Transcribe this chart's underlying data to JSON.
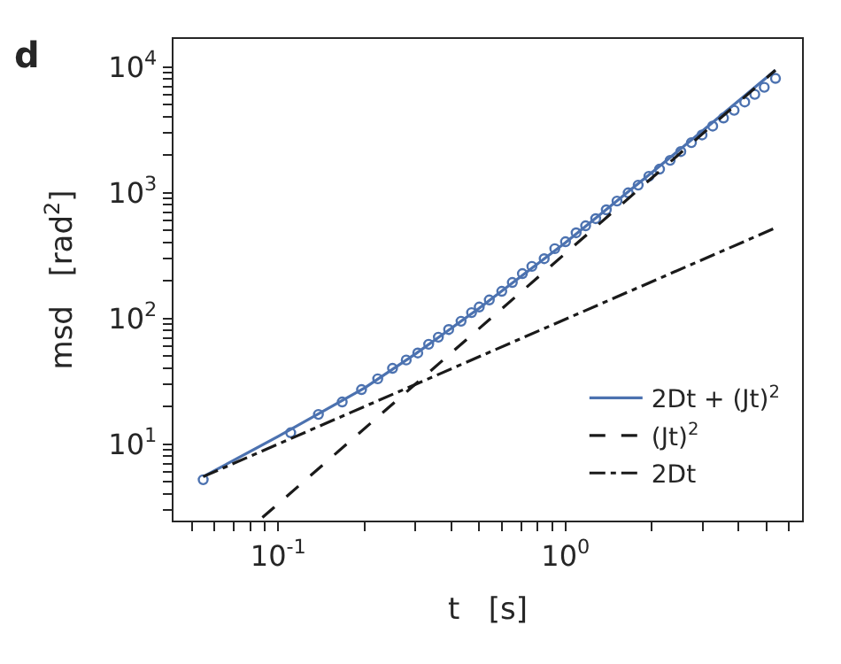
{
  "chart_data": {
    "type": "line",
    "xlabel": "t   [s]",
    "ylabel": "msd   [rad$^{2}$]",
    "log": "xy",
    "legend": "bottom right",
    "annotations": [
      "d"
    ],
    "xlim": [
      0.0432,
      6.66
    ],
    "ylim": [
      2.46,
      16700
    ],
    "xticks": [
      {
        "value": 0.05,
        "label": null
      },
      {
        "value": 0.06,
        "label": null
      },
      {
        "value": 0.07,
        "label": null
      },
      {
        "value": 0.08,
        "label": null
      },
      {
        "value": 0.09,
        "label": null
      },
      {
        "value": 0.1,
        "label": "10$^{-1}$"
      },
      {
        "value": 0.2,
        "label": null
      },
      {
        "value": 0.3,
        "label": null
      },
      {
        "value": 0.4,
        "label": null
      },
      {
        "value": 0.5,
        "label": null
      },
      {
        "value": 0.6,
        "label": null
      },
      {
        "value": 0.7,
        "label": null
      },
      {
        "value": 0.8,
        "label": null
      },
      {
        "value": 0.9,
        "label": null
      },
      {
        "value": 1,
        "label": "10$^{0}$"
      },
      {
        "value": 2,
        "label": null
      },
      {
        "value": 3,
        "label": null
      },
      {
        "value": 4,
        "label": null
      },
      {
        "value": 5,
        "label": null
      },
      {
        "value": 6,
        "label": null
      }
    ],
    "yticks": [
      {
        "value": 3,
        "label": null
      },
      {
        "value": 4,
        "label": null
      },
      {
        "value": 5,
        "label": null
      },
      {
        "value": 6,
        "label": null
      },
      {
        "value": 7,
        "label": null
      },
      {
        "value": 8,
        "label": null
      },
      {
        "value": 9,
        "label": null
      },
      {
        "value": 10,
        "label": "10$^{1}$"
      },
      {
        "value": 20,
        "label": null
      },
      {
        "value": 30,
        "label": null
      },
      {
        "value": 40,
        "label": null
      },
      {
        "value": 50,
        "label": null
      },
      {
        "value": 60,
        "label": null
      },
      {
        "value": 70,
        "label": null
      },
      {
        "value": 80,
        "label": null
      },
      {
        "value": 90,
        "label": null
      },
      {
        "value": 100,
        "label": "10$^{2}$"
      },
      {
        "value": 200,
        "label": null
      },
      {
        "value": 300,
        "label": null
      },
      {
        "value": 400,
        "label": null
      },
      {
        "value": 500,
        "label": null
      },
      {
        "value": 600,
        "label": null
      },
      {
        "value": 700,
        "label": null
      },
      {
        "value": 800,
        "label": null
      },
      {
        "value": 900,
        "label": null
      },
      {
        "value": 1000,
        "label": "10$^{3}$"
      },
      {
        "value": 2000,
        "label": null
      },
      {
        "value": 3000,
        "label": null
      },
      {
        "value": 4000,
        "label": null
      },
      {
        "value": 5000,
        "label": null
      },
      {
        "value": 6000,
        "label": null
      },
      {
        "value": 7000,
        "label": null
      },
      {
        "value": 8000,
        "label": null
      },
      {
        "value": 9000,
        "label": null
      },
      {
        "value": 10000,
        "label": "10$^{4}$"
      }
    ],
    "series": [
      {
        "type": "scatter",
        "marker": "circle",
        "color": "#4c72b0",
        "x": [
          0.0548,
          0.1105,
          0.138,
          0.167,
          0.195,
          0.222,
          0.25,
          0.279,
          0.306,
          0.334,
          0.361,
          0.392,
          0.433,
          0.471,
          0.501,
          0.543,
          0.6,
          0.653,
          0.708,
          0.764,
          0.843,
          0.918,
          1.0,
          1.089,
          1.175,
          1.274,
          1.387,
          1.511,
          1.653,
          1.791,
          1.951,
          2.125,
          2.314,
          2.52,
          2.744,
          2.988,
          3.254,
          3.548,
          3.864,
          4.207,
          4.56,
          4.92,
          5.383
        ],
        "values": [
          5.2,
          12.3,
          17.2,
          21.6,
          27.1,
          33,
          40,
          46.6,
          53,
          62.2,
          70.8,
          81.5,
          94.8,
          111,
          123,
          140,
          164,
          193,
          227,
          259,
          298,
          358,
          407,
          479,
          545,
          621,
          730,
          857,
          997,
          1148,
          1349,
          1538,
          1807,
          2123,
          2500,
          2877,
          3381,
          3927,
          4519,
          5260,
          6053,
          6887,
          8110
        ]
      },
      {
        "name": "2Dt + (Jt)$^{2}$",
        "color": "#4c72b0",
        "line_style": "solid",
        "x": [
          0.0548,
          0.1,
          0.2,
          0.3,
          0.5,
          1,
          2,
          3,
          5.38
        ],
        "values": [
          5.5,
          11.5,
          28,
          52,
          120,
          400,
          1450,
          3100,
          9420
        ]
      },
      {
        "name": "(Jt)$^{2}$",
        "color": "#1a1a1a",
        "line_style": "dashed",
        "x": [
          0.0881,
          5.38
        ],
        "values": [
          2.6,
          9420
        ]
      },
      {
        "name": "2Dt",
        "color": "#1a1a1a",
        "line_style": "dashdot",
        "x": [
          0.0548,
          5.3
        ],
        "values": [
          5.5,
          516
        ]
      }
    ]
  }
}
